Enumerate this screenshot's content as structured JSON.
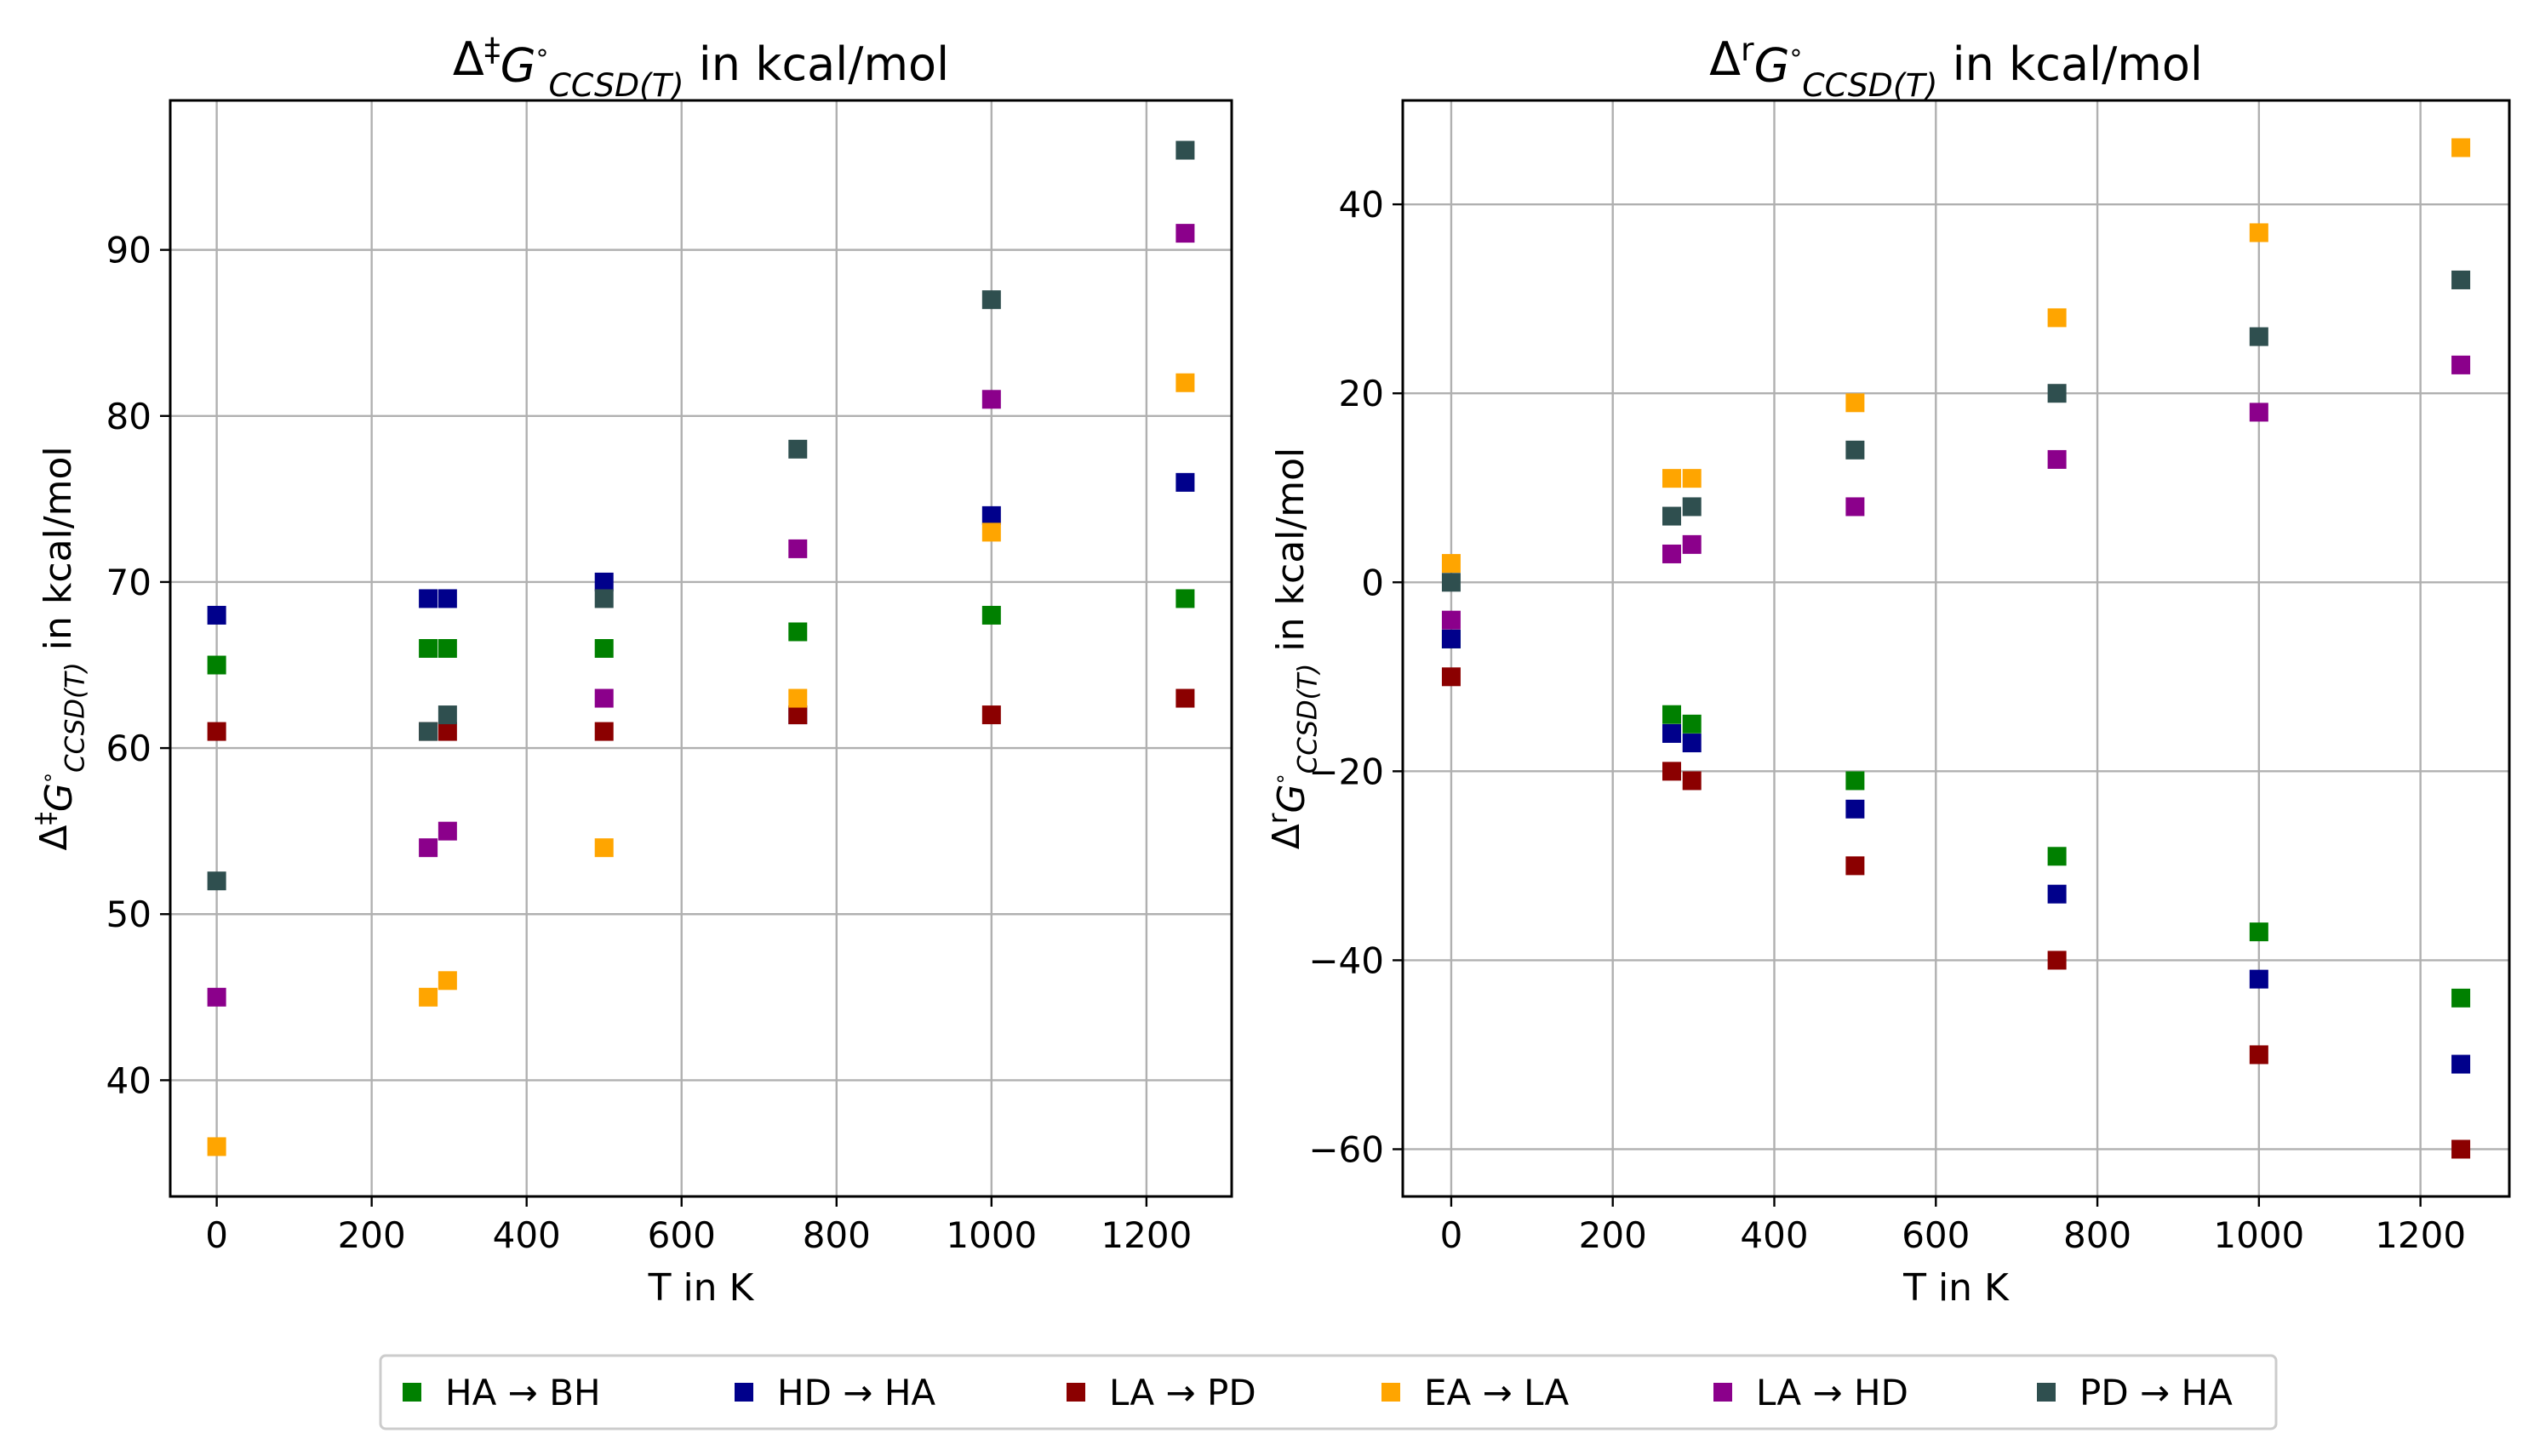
{
  "chart_data": [
    {
      "type": "scatter",
      "title_parts": [
        "Δ",
        "‡",
        "G",
        "°",
        "CCSD(T)",
        " in kcal/mol"
      ],
      "xlabel": "T in K",
      "ylabel_parts": [
        "Δ",
        "‡",
        "G",
        "°",
        "CCSD(T)",
        " in kcal/mol"
      ],
      "xlim": [
        -60,
        1310
      ],
      "ylim": [
        33,
        99
      ],
      "xticks": [
        0,
        200,
        400,
        600,
        800,
        1000,
        1200
      ],
      "xtick_labels": [
        "0",
        "200",
        "400",
        "600",
        "800",
        "1000",
        "1200"
      ],
      "yticks": [
        40,
        50,
        60,
        70,
        80,
        90
      ],
      "ytick_labels": [
        "40",
        "50",
        "60",
        "70",
        "80",
        "90"
      ],
      "grid": true,
      "x": [
        0,
        273,
        298,
        500,
        750,
        1000,
        1250
      ],
      "series": [
        {
          "name": "HA → BH",
          "color": "#008000",
          "values": [
            65,
            66,
            66,
            66,
            67,
            68,
            69
          ]
        },
        {
          "name": "HD → HA",
          "color": "#00008b",
          "values": [
            68,
            69,
            69,
            70,
            62,
            74,
            76
          ]
        },
        {
          "name": "LA → PD",
          "color": "#8b0000",
          "values": [
            61,
            61,
            61,
            61,
            62,
            62,
            63
          ]
        },
        {
          "name": "EA → LA",
          "color": "#ffa500",
          "values": [
            36,
            45,
            46,
            54,
            63,
            73,
            82
          ]
        },
        {
          "name": "LA → HD",
          "color": "#8b008b",
          "values": [
            45,
            54,
            55,
            63,
            72,
            81,
            91
          ]
        },
        {
          "name": "PD → HA",
          "color": "#2f4f4f",
          "values": [
            52,
            61,
            62,
            69,
            78,
            87,
            96
          ]
        }
      ]
    },
    {
      "type": "scatter",
      "title_parts": [
        "Δ",
        "r",
        "G",
        "°",
        "CCSD(T)",
        " in kcal/mol"
      ],
      "xlabel": "T in K",
      "ylabel_parts": [
        "Δ",
        "r",
        "G",
        "°",
        "CCSD(T)",
        " in kcal/mol"
      ],
      "xlim": [
        -60,
        1310
      ],
      "ylim": [
        -65,
        51
      ],
      "xticks": [
        0,
        200,
        400,
        600,
        800,
        1000,
        1200
      ],
      "xtick_labels": [
        "0",
        "200",
        "400",
        "600",
        "800",
        "1000",
        "1200"
      ],
      "yticks": [
        -60,
        -40,
        -20,
        0,
        20,
        40
      ],
      "ytick_labels": [
        "−60",
        "−40",
        "−20",
        "0",
        "20",
        "40"
      ],
      "grid": true,
      "x": [
        0,
        273,
        298,
        500,
        750,
        1000,
        1250
      ],
      "series": [
        {
          "name": "HA → BH",
          "color": "#008000",
          "values": [
            -6,
            -14,
            -15,
            -21,
            -29,
            -37,
            -44
          ]
        },
        {
          "name": "HD → HA",
          "color": "#00008b",
          "values": [
            -6,
            -16,
            -17,
            -24,
            -33,
            -42,
            -51
          ]
        },
        {
          "name": "LA → PD",
          "color": "#8b0000",
          "values": [
            -10,
            -20,
            -21,
            -30,
            -40,
            -50,
            -60
          ]
        },
        {
          "name": "EA → LA",
          "color": "#ffa500",
          "values": [
            2,
            11,
            11,
            19,
            28,
            37,
            46
          ]
        },
        {
          "name": "LA → HD",
          "color": "#8b008b",
          "values": [
            -4,
            3,
            4,
            8,
            13,
            18,
            23
          ]
        },
        {
          "name": "PD → HA",
          "color": "#2f4f4f",
          "values": [
            0,
            7,
            8,
            14,
            20,
            26,
            32
          ]
        }
      ]
    }
  ],
  "legend": {
    "location": "bottom-center",
    "entries": [
      "HA → BH",
      "HD → HA",
      "LA → PD",
      "EA → LA",
      "LA → HD",
      "PD → HA"
    ]
  }
}
